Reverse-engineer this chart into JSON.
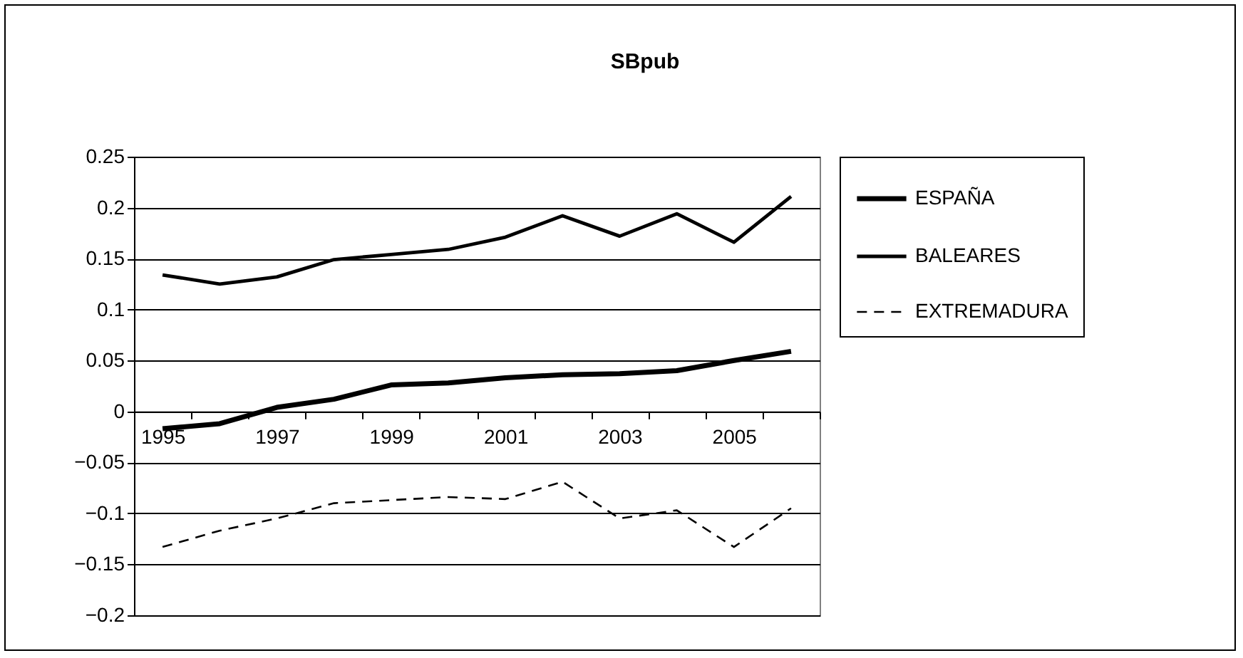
{
  "chart_data": {
    "type": "line",
    "title": "SBpub",
    "categories": [
      "1995",
      null,
      "1997",
      null,
      "1999",
      null,
      "2001",
      null,
      "2003",
      null,
      "2005",
      null
    ],
    "series": [
      {
        "name": "ESPAÑA",
        "color": "#000000",
        "line_style": "solid",
        "values": [
          -0.017,
          -0.012,
          0.004,
          0.012,
          0.026,
          0.028,
          0.033,
          0.036,
          0.037,
          0.04,
          0.05,
          0.059
        ]
      },
      {
        "name": "BALEARES",
        "color": "#000000",
        "line_style": "solid",
        "values": [
          0.134,
          0.125,
          0.132,
          0.149,
          0.154,
          0.159,
          0.171,
          0.192,
          0.172,
          0.194,
          0.166,
          0.211
        ]
      },
      {
        "name": "EXTREMADURA",
        "color": "#000000",
        "line_style": "dashed",
        "values": [
          -0.133,
          -0.117,
          -0.105,
          -0.09,
          -0.087,
          -0.084,
          -0.086,
          -0.069,
          -0.105,
          -0.097,
          -0.133,
          -0.095
        ]
      }
    ],
    "ylim": [
      -0.2,
      0.25
    ],
    "yticks": [
      -0.2,
      -0.15,
      -0.1,
      -0.05,
      0,
      0.05,
      0.1,
      0.15,
      0.2,
      0.25
    ],
    "grid": "y",
    "legend": "right",
    "marker": "none"
  }
}
